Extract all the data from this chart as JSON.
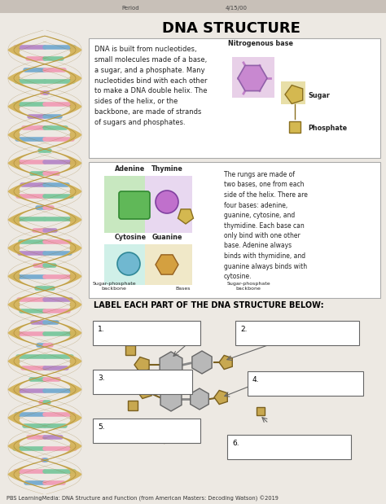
{
  "title": "DNA STRUCTURE",
  "page_bg": "#ede9e3",
  "top_bar_color": "#c8c0b8",
  "box_bg": "#f5f3f0",
  "box_border": "#999999",
  "box1_text_left": "DNA is built from nucleotides,\nsmall molecules made of a base,\na sugar, and a phosphate. Many\nnucleotides bind with each other\nto make a DNA double helix. The\nsides of the helix, or the\nbackbone, are made of strands\nof sugars and phosphates.",
  "box1_label1": "Nitrogenous base",
  "box1_label2": "Sugar",
  "box1_label3": "Phosphate",
  "box2_label1": "Adenine",
  "box2_label2": "Thymine",
  "box2_label3": "Cytosine",
  "box2_label4": "Guanine",
  "box2_bottom1": "Sugar-phosphate\nbackbone",
  "box2_bottom2": "Bases",
  "box2_bottom3": "Sugar-phosphate\nbackbone",
  "box2_text": "The rungs are made of\ntwo bases, one from each\nside of the helix. There are\nfour bases: adenine,\nguanine, cytosine, and\nthymidine. Each base can\nonly bind with one other\nbase. Adenine always\nbinds with thymidine, and\nguanine always binds with\ncytosine.",
  "label_section": "LABEL EACH PART OF THE DNA STRUCTURE BELOW:",
  "footer": "PBS LearningMedia: DNA Structure and Function (from American Masters: Decoding Watson) ©2019",
  "helix_gold": "#d4b45a",
  "helix_shadow": "#8b6914",
  "rung_colors": [
    "#7ec8a0",
    "#b88cc8",
    "#f0a0b8",
    "#7aadd0",
    "#7ec8a0",
    "#f0a0b8"
  ],
  "numbering": [
    "1.",
    "2.",
    "3.",
    "4.",
    "5.",
    "6."
  ]
}
